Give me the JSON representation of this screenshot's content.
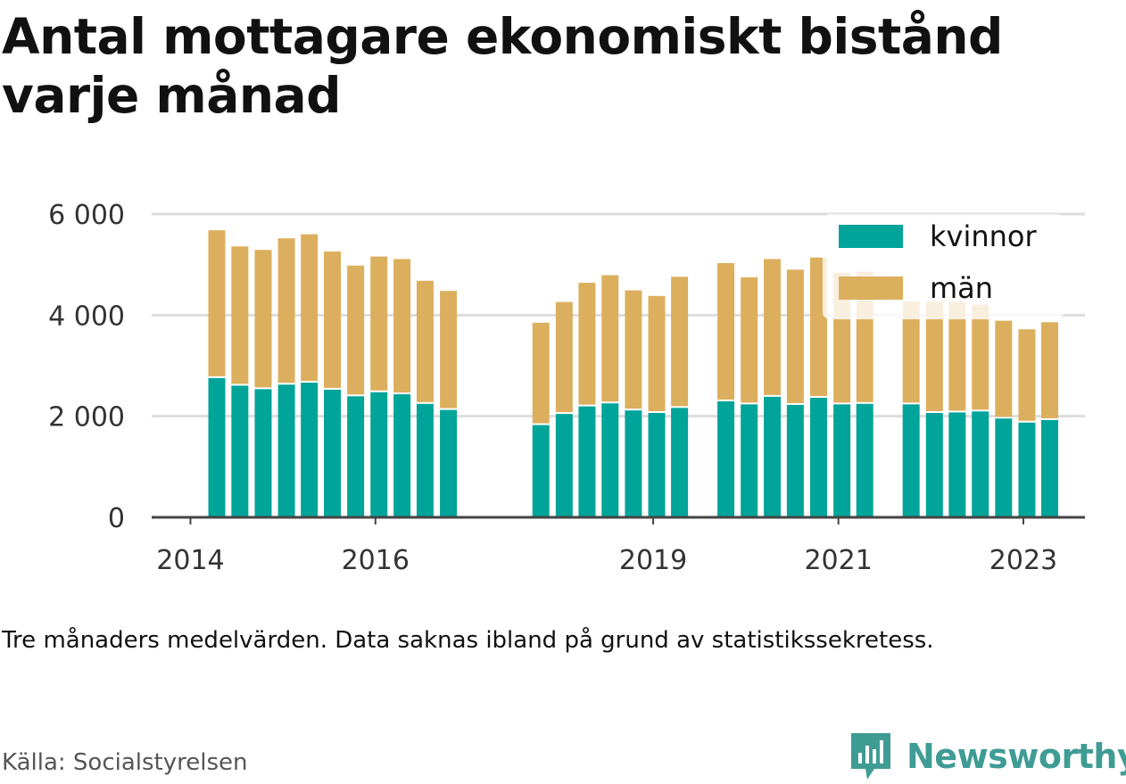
{
  "chart_data": {
    "type": "bar",
    "stacked": true,
    "title": "Antal mottagare ekonomiskt bistånd varje månad",
    "note": "Tre månaders medelvärden. Data saknas ibland på grund av statistikssekretess.",
    "source": "Källa: Socialstyrelsen",
    "brand": "Newsworthy",
    "ylim": [
      0,
      6000
    ],
    "yticks": [
      0,
      2000,
      4000,
      6000
    ],
    "ytick_labels": [
      "0",
      "2 000",
      "4 000",
      "6 000"
    ],
    "xticks": [
      {
        "x": "2014-01-01",
        "label": "2014"
      },
      {
        "x": "2016-01-01",
        "label": "2016"
      },
      {
        "x": "2019-01-01",
        "label": "2019"
      },
      {
        "x": "2021-01-01",
        "label": "2021"
      },
      {
        "x": "2023-01-01",
        "label": "2023"
      }
    ],
    "xlim": [
      "2013-08-01",
      "2023-09-01"
    ],
    "grid": true,
    "legend_position": "top-right",
    "colors": {
      "kvinnor": "#00a499",
      "män": "#dcaf5e"
    },
    "x": [
      "2014-04",
      "2014-07",
      "2014-10",
      "2015-01",
      "2015-04",
      "2015-07",
      "2015-10",
      "2016-01",
      "2016-04",
      "2016-07",
      "2016-10",
      "2017-10",
      "2018-01",
      "2018-04",
      "2018-07",
      "2018-10",
      "2019-01",
      "2019-04",
      "2019-10",
      "2020-01",
      "2020-04",
      "2020-07",
      "2020-10",
      "2021-01",
      "2021-04",
      "2021-10",
      "2022-01",
      "2022-04",
      "2022-07",
      "2022-10",
      "2023-01",
      "2023-04"
    ],
    "series": [
      {
        "name": "kvinnor",
        "values": [
          2790,
          2640,
          2570,
          2660,
          2700,
          2560,
          2430,
          2510,
          2470,
          2280,
          2160,
          1860,
          2080,
          2230,
          2290,
          2150,
          2100,
          2200,
          2330,
          2270,
          2420,
          2260,
          2400,
          2270,
          2280,
          2270,
          2100,
          2110,
          2130,
          1990,
          1910,
          1960
        ]
      },
      {
        "name": "män",
        "values": [
          2890,
          2720,
          2720,
          2860,
          2900,
          2700,
          2550,
          2650,
          2640,
          2400,
          2320,
          1990,
          2180,
          2410,
          2500,
          2340,
          2280,
          2560,
          2700,
          2480,
          2690,
          2640,
          2740,
          2570,
          2580,
          2000,
          2170,
          2150,
          2080,
          1900,
          1810,
          1900
        ]
      }
    ]
  }
}
